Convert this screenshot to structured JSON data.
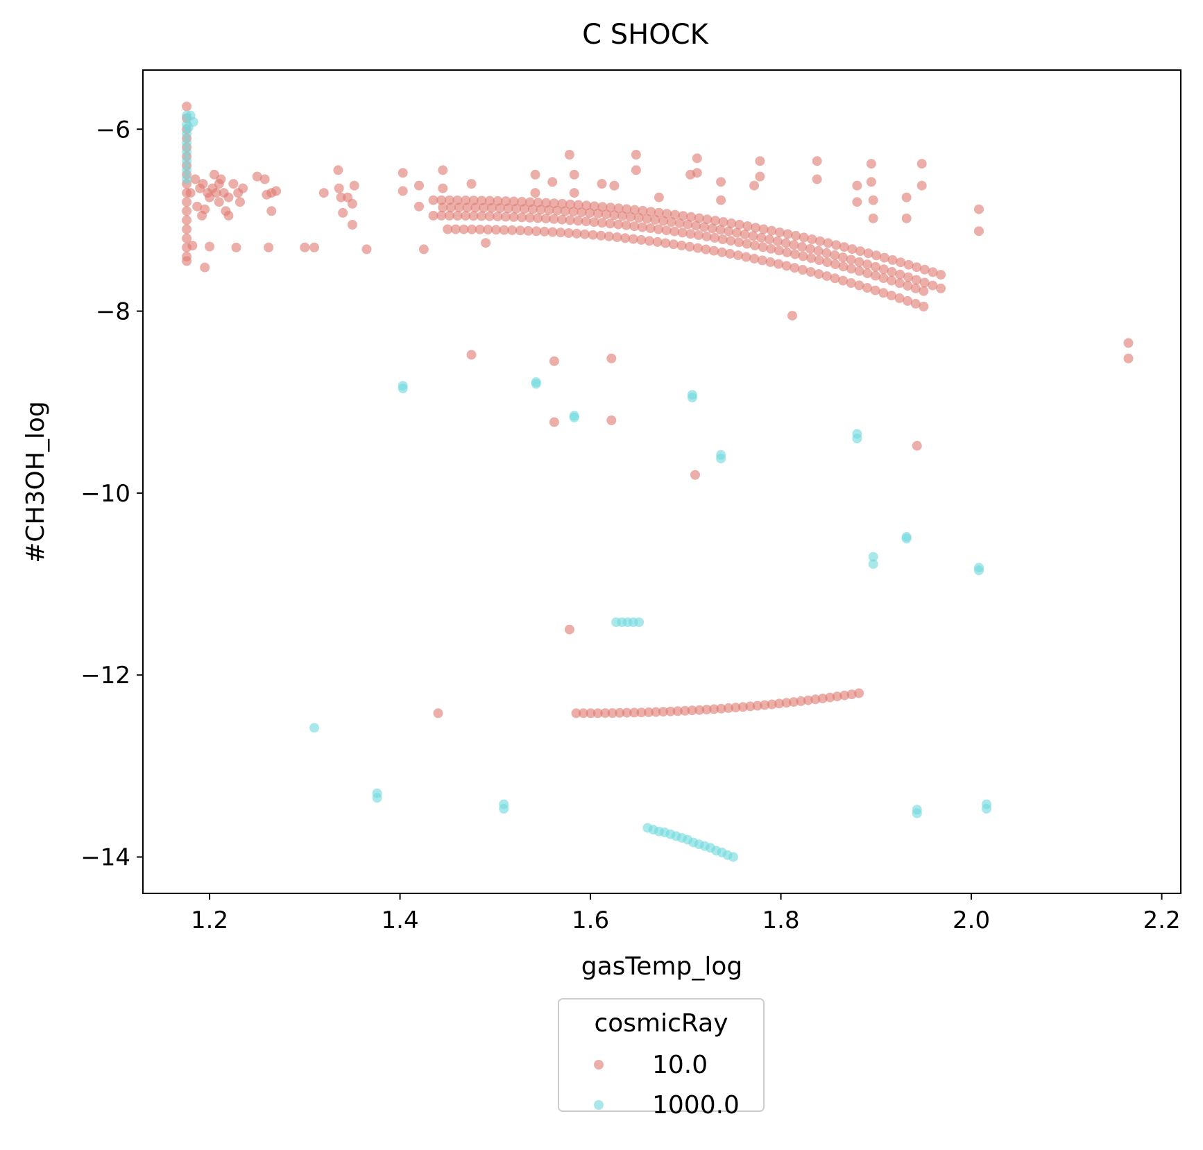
{
  "chart_data": {
    "type": "scatter",
    "title": "C SHOCK",
    "xlabel": "gasTemp_log",
    "ylabel": "#CH3OH_log",
    "xlim": [
      1.13,
      2.22
    ],
    "ylim": [
      -14.4,
      -5.35
    ],
    "xticks": [
      1.2,
      1.4,
      1.6,
      1.8,
      2.0,
      2.2
    ],
    "xtick_labels": [
      "1.2",
      "1.4",
      "1.6",
      "1.8",
      "2.0",
      "2.2"
    ],
    "yticks": [
      -6,
      -8,
      -10,
      -12,
      -14
    ],
    "ytick_labels": [
      "−6",
      "−8",
      "−10",
      "−12",
      "−14"
    ],
    "grid": false,
    "legend": {
      "title": "cosmicRay",
      "placement": "below-center",
      "entries": [
        "10.0",
        "1000.0"
      ]
    },
    "series": [
      {
        "name": "10.0",
        "color": "#e0787060",
        "points": [
          [
            1.176,
            -5.75
          ],
          [
            1.176,
            -5.88
          ],
          [
            1.176,
            -6.0
          ],
          [
            1.176,
            -6.1
          ],
          [
            1.176,
            -6.2
          ],
          [
            1.176,
            -6.3
          ],
          [
            1.176,
            -6.4
          ],
          [
            1.176,
            -6.5
          ],
          [
            1.176,
            -6.6
          ],
          [
            1.176,
            -6.7
          ],
          [
            1.176,
            -6.8
          ],
          [
            1.176,
            -6.9
          ],
          [
            1.176,
            -7.0
          ],
          [
            1.176,
            -7.1
          ],
          [
            1.176,
            -7.2
          ],
          [
            1.176,
            -7.3
          ],
          [
            1.176,
            -7.4
          ],
          [
            1.176,
            -7.45
          ],
          [
            1.18,
            -6.7
          ],
          [
            1.182,
            -7.28
          ],
          [
            1.185,
            -6.55
          ],
          [
            1.187,
            -6.85
          ],
          [
            1.19,
            -6.65
          ],
          [
            1.192,
            -6.95
          ],
          [
            1.193,
            -6.6
          ],
          [
            1.195,
            -6.88
          ],
          [
            1.195,
            -7.52
          ],
          [
            1.198,
            -6.7
          ],
          [
            1.2,
            -6.75
          ],
          [
            1.2,
            -7.29
          ],
          [
            1.203,
            -6.65
          ],
          [
            1.205,
            -6.5
          ],
          [
            1.207,
            -6.7
          ],
          [
            1.21,
            -6.8
          ],
          [
            1.21,
            -6.6
          ],
          [
            1.212,
            -6.55
          ],
          [
            1.215,
            -6.7
          ],
          [
            1.217,
            -6.9
          ],
          [
            1.22,
            -6.75
          ],
          [
            1.22,
            -6.95
          ],
          [
            1.225,
            -6.6
          ],
          [
            1.228,
            -7.3
          ],
          [
            1.23,
            -6.7
          ],
          [
            1.232,
            -6.8
          ],
          [
            1.235,
            -6.65
          ],
          [
            1.25,
            -6.52
          ],
          [
            1.258,
            -6.55
          ],
          [
            1.26,
            -6.72
          ],
          [
            1.262,
            -7.3
          ],
          [
            1.265,
            -6.7
          ],
          [
            1.265,
            -6.9
          ],
          [
            1.27,
            -6.68
          ],
          [
            1.3,
            -7.3
          ],
          [
            1.31,
            -7.3
          ],
          [
            1.32,
            -6.7
          ],
          [
            1.335,
            -6.45
          ],
          [
            1.336,
            -6.65
          ],
          [
            1.338,
            -6.75
          ],
          [
            1.34,
            -6.92
          ],
          [
            1.345,
            -6.75
          ],
          [
            1.35,
            -6.82
          ],
          [
            1.35,
            -7.05
          ],
          [
            1.352,
            -6.62
          ],
          [
            1.365,
            -7.32
          ],
          [
            1.403,
            -6.48
          ],
          [
            1.403,
            -6.68
          ],
          [
            1.42,
            -6.62
          ],
          [
            1.42,
            -6.85
          ],
          [
            1.425,
            -7.32
          ],
          [
            1.445,
            -6.45
          ],
          [
            1.445,
            -6.65
          ],
          [
            1.475,
            -6.6
          ],
          [
            1.49,
            -7.25
          ],
          [
            1.475,
            -8.48
          ],
          [
            1.542,
            -6.5
          ],
          [
            1.542,
            -6.7
          ],
          [
            1.56,
            -6.58
          ],
          [
            1.562,
            -8.55
          ],
          [
            1.562,
            -9.22
          ],
          [
            1.578,
            -6.28
          ],
          [
            1.578,
            -11.5
          ],
          [
            1.583,
            -6.5
          ],
          [
            1.583,
            -6.7
          ],
          [
            1.612,
            -6.6
          ],
          [
            1.622,
            -8.52
          ],
          [
            1.622,
            -9.2
          ],
          [
            1.625,
            -6.62
          ],
          [
            1.648,
            -6.28
          ],
          [
            1.648,
            -6.45
          ],
          [
            1.672,
            -6.75
          ],
          [
            1.705,
            -6.5
          ],
          [
            1.71,
            -9.8
          ],
          [
            1.712,
            -6.32
          ],
          [
            1.712,
            -6.48
          ],
          [
            1.737,
            -6.58
          ],
          [
            1.737,
            -6.78
          ],
          [
            1.772,
            -6.62
          ],
          [
            1.778,
            -6.35
          ],
          [
            1.778,
            -6.52
          ],
          [
            1.812,
            -8.05
          ],
          [
            1.838,
            -6.35
          ],
          [
            1.838,
            -6.55
          ],
          [
            1.88,
            -6.62
          ],
          [
            1.88,
            -6.8
          ],
          [
            1.895,
            -6.38
          ],
          [
            1.895,
            -6.58
          ],
          [
            1.897,
            -6.78
          ],
          [
            1.897,
            -6.98
          ],
          [
            1.932,
            -6.75
          ],
          [
            1.932,
            -6.98
          ],
          [
            1.943,
            -9.48
          ],
          [
            1.948,
            -6.38
          ],
          [
            1.948,
            -6.62
          ],
          [
            2.008,
            -6.88
          ],
          [
            2.008,
            -7.12
          ],
          [
            2.165,
            -8.35
          ],
          [
            2.165,
            -8.52
          ],
          [
            1.44,
            -12.42
          ]
        ],
        "curves": [
          {
            "x0": 1.435,
            "x1": 1.968,
            "n": 64,
            "y_start": -6.78,
            "y_end": -7.6
          },
          {
            "x0": 1.445,
            "x1": 1.968,
            "n": 62,
            "y_start": -6.86,
            "y_end": -7.75
          },
          {
            "x0": 1.435,
            "x1": 1.95,
            "n": 62,
            "y_start": -6.95,
            "y_end": -7.78
          },
          {
            "x0": 1.45,
            "x1": 1.95,
            "n": 60,
            "y_start": -7.1,
            "y_end": -7.95
          },
          {
            "x0": 1.585,
            "x1": 1.882,
            "n": 40,
            "y_start": -12.42,
            "y_end": -12.2
          }
        ]
      },
      {
        "name": "1000.0",
        "color": "#70d8dc",
        "points": [
          [
            1.176,
            -5.85
          ],
          [
            1.176,
            -5.95
          ],
          [
            1.176,
            -6.05
          ],
          [
            1.176,
            -6.15
          ],
          [
            1.176,
            -6.25
          ],
          [
            1.176,
            -6.35
          ],
          [
            1.176,
            -6.45
          ],
          [
            1.176,
            -6.55
          ],
          [
            1.18,
            -5.85
          ],
          [
            1.183,
            -5.92
          ],
          [
            1.178,
            -5.98
          ],
          [
            1.403,
            -8.82
          ],
          [
            1.403,
            -8.85
          ],
          [
            1.543,
            -8.78
          ],
          [
            1.543,
            -8.8
          ],
          [
            1.583,
            -9.15
          ],
          [
            1.583,
            -9.17
          ],
          [
            1.707,
            -8.92
          ],
          [
            1.707,
            -8.95
          ],
          [
            1.737,
            -9.58
          ],
          [
            1.737,
            -9.62
          ],
          [
            1.88,
            -9.35
          ],
          [
            1.88,
            -9.4
          ],
          [
            1.932,
            -10.48
          ],
          [
            1.932,
            -10.5
          ],
          [
            1.897,
            -10.7
          ],
          [
            1.897,
            -10.78
          ],
          [
            2.008,
            -10.82
          ],
          [
            2.008,
            -10.85
          ],
          [
            1.627,
            -11.42
          ],
          [
            1.633,
            -11.42
          ],
          [
            1.639,
            -11.42
          ],
          [
            1.645,
            -11.42
          ],
          [
            1.651,
            -11.42
          ],
          [
            1.31,
            -12.58
          ],
          [
            1.376,
            -13.3
          ],
          [
            1.376,
            -13.35
          ],
          [
            1.509,
            -13.42
          ],
          [
            1.509,
            -13.47
          ],
          [
            1.943,
            -13.48
          ],
          [
            1.943,
            -13.52
          ],
          [
            2.016,
            -13.42
          ],
          [
            2.016,
            -13.47
          ],
          [
            1.66,
            -13.68
          ],
          [
            1.666,
            -13.7
          ],
          [
            1.672,
            -13.72
          ],
          [
            1.678,
            -13.73
          ],
          [
            1.684,
            -13.75
          ],
          [
            1.69,
            -13.77
          ],
          [
            1.696,
            -13.79
          ],
          [
            1.702,
            -13.81
          ],
          [
            1.708,
            -13.84
          ],
          [
            1.714,
            -13.86
          ],
          [
            1.72,
            -13.88
          ],
          [
            1.726,
            -13.9
          ],
          [
            1.732,
            -13.93
          ],
          [
            1.738,
            -13.95
          ],
          [
            1.744,
            -13.98
          ],
          [
            1.75,
            -14.0
          ]
        ]
      }
    ]
  }
}
